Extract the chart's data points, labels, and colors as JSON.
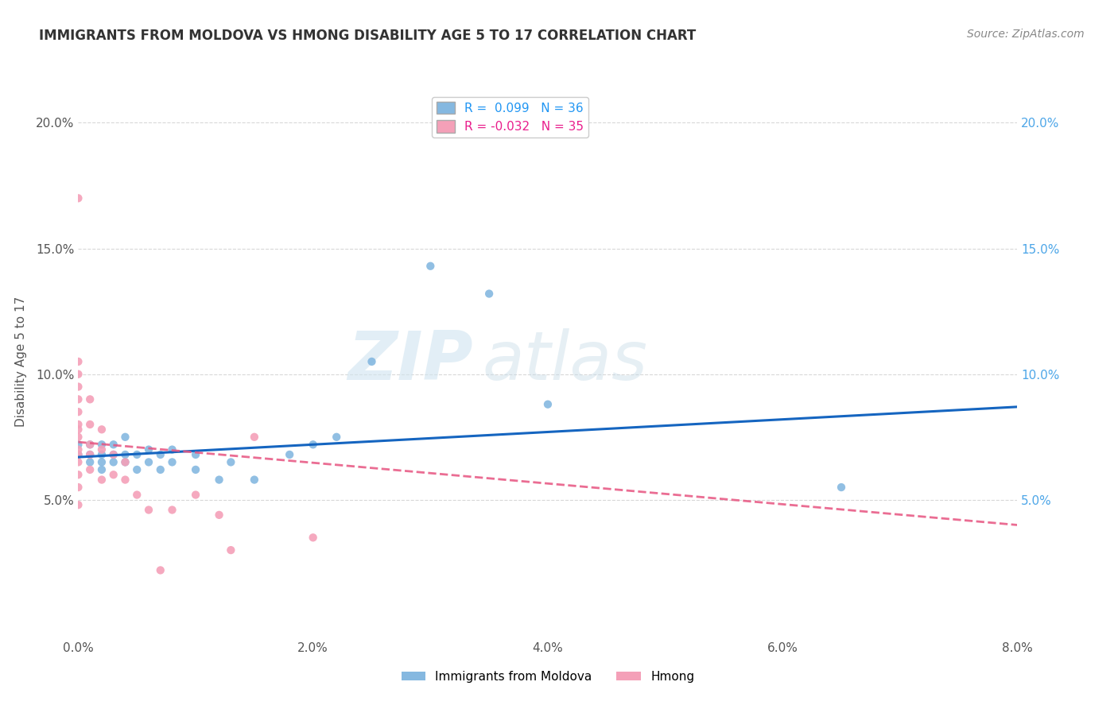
{
  "title": "IMMIGRANTS FROM MOLDOVA VS HMONG DISABILITY AGE 5 TO 17 CORRELATION CHART",
  "source_text": "Source: ZipAtlas.com",
  "xlabel": "",
  "ylabel": "Disability Age 5 to 17",
  "xlim": [
    0.0,
    0.08
  ],
  "ylim": [
    -0.005,
    0.215
  ],
  "xtick_labels": [
    "0.0%",
    "2.0%",
    "4.0%",
    "6.0%",
    "8.0%"
  ],
  "xtick_values": [
    0.0,
    0.02,
    0.04,
    0.06,
    0.08
  ],
  "ytick_labels": [
    "5.0%",
    "10.0%",
    "15.0%",
    "20.0%"
  ],
  "ytick_values": [
    0.05,
    0.1,
    0.15,
    0.2
  ],
  "watermark_zip": "ZIP",
  "watermark_atlas": "atlas",
  "moldova_color": "#85b8e0",
  "hmong_color": "#f4a0b8",
  "moldova_line_color": "#1565C0",
  "hmong_line_color": "#e75480",
  "moldova_scatter": [
    [
      0.0,
      0.068
    ],
    [
      0.0,
      0.072
    ],
    [
      0.001,
      0.065
    ],
    [
      0.001,
      0.068
    ],
    [
      0.001,
      0.072
    ],
    [
      0.002,
      0.062
    ],
    [
      0.002,
      0.065
    ],
    [
      0.002,
      0.068
    ],
    [
      0.002,
      0.072
    ],
    [
      0.003,
      0.065
    ],
    [
      0.003,
      0.068
    ],
    [
      0.003,
      0.072
    ],
    [
      0.004,
      0.065
    ],
    [
      0.004,
      0.068
    ],
    [
      0.004,
      0.075
    ],
    [
      0.005,
      0.062
    ],
    [
      0.005,
      0.068
    ],
    [
      0.006,
      0.065
    ],
    [
      0.006,
      0.07
    ],
    [
      0.007,
      0.062
    ],
    [
      0.007,
      0.068
    ],
    [
      0.008,
      0.065
    ],
    [
      0.008,
      0.07
    ],
    [
      0.01,
      0.062
    ],
    [
      0.01,
      0.068
    ],
    [
      0.012,
      0.058
    ],
    [
      0.013,
      0.065
    ],
    [
      0.015,
      0.058
    ],
    [
      0.018,
      0.068
    ],
    [
      0.02,
      0.072
    ],
    [
      0.022,
      0.075
    ],
    [
      0.025,
      0.105
    ],
    [
      0.03,
      0.143
    ],
    [
      0.035,
      0.132
    ],
    [
      0.04,
      0.088
    ],
    [
      0.065,
      0.055
    ]
  ],
  "hmong_scatter": [
    [
      0.0,
      0.17
    ],
    [
      0.0,
      0.105
    ],
    [
      0.0,
      0.1
    ],
    [
      0.0,
      0.095
    ],
    [
      0.0,
      0.09
    ],
    [
      0.0,
      0.085
    ],
    [
      0.0,
      0.08
    ],
    [
      0.0,
      0.078
    ],
    [
      0.0,
      0.075
    ],
    [
      0.0,
      0.07
    ],
    [
      0.0,
      0.068
    ],
    [
      0.0,
      0.065
    ],
    [
      0.0,
      0.06
    ],
    [
      0.0,
      0.055
    ],
    [
      0.0,
      0.048
    ],
    [
      0.001,
      0.09
    ],
    [
      0.001,
      0.08
    ],
    [
      0.001,
      0.072
    ],
    [
      0.001,
      0.068
    ],
    [
      0.001,
      0.062
    ],
    [
      0.002,
      0.078
    ],
    [
      0.002,
      0.07
    ],
    [
      0.002,
      0.058
    ],
    [
      0.003,
      0.068
    ],
    [
      0.003,
      0.06
    ],
    [
      0.004,
      0.065
    ],
    [
      0.004,
      0.058
    ],
    [
      0.005,
      0.052
    ],
    [
      0.006,
      0.046
    ],
    [
      0.007,
      0.022
    ],
    [
      0.008,
      0.046
    ],
    [
      0.01,
      0.052
    ],
    [
      0.012,
      0.044
    ],
    [
      0.013,
      0.03
    ],
    [
      0.015,
      0.075
    ],
    [
      0.02,
      0.035
    ]
  ],
  "background_color": "#ffffff",
  "grid_color": "#d8d8d8",
  "title_color": "#333333",
  "source_color": "#888888"
}
